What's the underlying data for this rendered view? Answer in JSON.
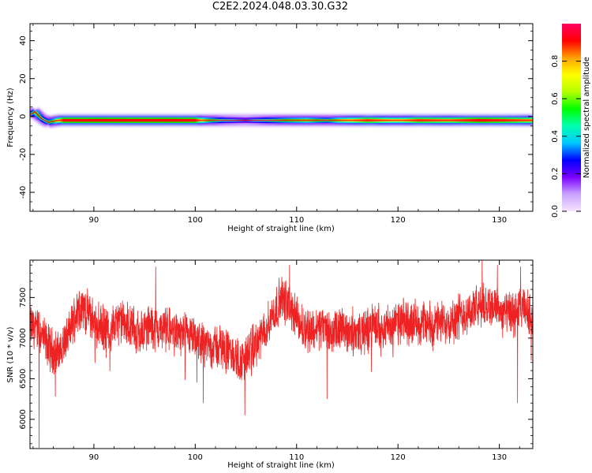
{
  "figure": {
    "title": "C2E2.2024.048.03.30.G32"
  },
  "chart_data": [
    {
      "type": "heatmap",
      "title": "C2E2.2024.048.03.30.G32",
      "xlabel": "Height of straight line (km)",
      "ylabel": "Frequency (Hz)",
      "xlim": [
        83.7,
        133.3
      ],
      "ylim": [
        -50,
        49
      ],
      "xticks": [
        90,
        100,
        110,
        120,
        130
      ],
      "yticks": [
        -40,
        -20,
        0,
        20,
        40
      ],
      "ytick_labels": [
        "-40",
        "-20",
        "0",
        "20",
        "40"
      ],
      "grid": false,
      "colorbar": {
        "label": "Normalized spectral amplitude",
        "range": [
          0,
          1
        ],
        "ticks": [
          0.0,
          0.2,
          0.4,
          0.6,
          0.8
        ],
        "tick_labels": [
          "0.0",
          "0.2",
          "0.4",
          "0.6",
          "0.8"
        ],
        "colormap": [
          "#f5e6ff",
          "#c9a3ff",
          "#7a00ff",
          "#0000ff",
          "#00c8ff",
          "#00ffb0",
          "#00ff00",
          "#b4ff00",
          "#ffff00",
          "#ffa000",
          "#ff0000",
          "#ff0066"
        ]
      },
      "ridge": [
        {
          "x": 83.7,
          "y": 1.0
        },
        {
          "x": 84.2,
          "y": 2.5
        },
        {
          "x": 84.8,
          "y": -1.0
        },
        {
          "x": 85.5,
          "y": -3.0
        },
        {
          "x": 86.5,
          "y": -2.0
        },
        {
          "x": 88,
          "y": -2.0
        },
        {
          "x": 100,
          "y": -2.0
        },
        {
          "x": 133,
          "y": -2.0
        }
      ],
      "band_amplitude": [
        {
          "x": 83.7,
          "v": 0.35
        },
        {
          "x": 84.3,
          "v": 0.6
        },
        {
          "x": 85.0,
          "v": 0.45
        },
        {
          "x": 86.0,
          "v": 0.55
        },
        {
          "x": 87.0,
          "v": 0.9
        },
        {
          "x": 95,
          "v": 0.92
        },
        {
          "x": 100,
          "v": 0.9
        },
        {
          "x": 101,
          "v": 0.6
        },
        {
          "x": 103,
          "v": 0.4
        },
        {
          "x": 105,
          "v": 0.3
        },
        {
          "x": 107,
          "v": 0.45
        },
        {
          "x": 109,
          "v": 0.55
        },
        {
          "x": 111,
          "v": 0.6
        },
        {
          "x": 113,
          "v": 0.5
        },
        {
          "x": 115,
          "v": 0.7
        },
        {
          "x": 117,
          "v": 0.85
        },
        {
          "x": 120,
          "v": 0.7
        },
        {
          "x": 122,
          "v": 0.85
        },
        {
          "x": 125,
          "v": 0.8
        },
        {
          "x": 128,
          "v": 0.9
        },
        {
          "x": 131,
          "v": 0.85
        },
        {
          "x": 133,
          "v": 0.8
        }
      ]
    },
    {
      "type": "line",
      "xlabel": "Height of straight line (km)",
      "ylabel": "SNR (10 * v/v)",
      "xlim": [
        83.7,
        133.3
      ],
      "ylim": [
        5640,
        7960
      ],
      "xticks": [
        90,
        100,
        110,
        120,
        130
      ],
      "yticks": [
        6000,
        6500,
        7000,
        7500
      ],
      "grid": false,
      "series": [
        {
          "color": "#ee2222",
          "x": [
            83.7,
            84.5,
            85.5,
            86.5,
            87.5,
            88.5,
            89.5,
            90.5,
            91.5,
            92.5,
            93.5,
            94.5,
            95.5,
            96.5,
            97.5,
            98.5,
            99.5,
            100.5,
            101.5,
            102.5,
            103.5,
            104.5,
            105.5,
            106.5,
            107.5,
            108.5,
            109.5,
            110.5,
            111.5,
            112.5,
            113.5,
            114.5,
            115.5,
            116.5,
            117.5,
            118.5,
            119.5,
            120.5,
            121.5,
            122.5,
            123.5,
            124.5,
            125.5,
            126.5,
            127.5,
            128.5,
            129.5,
            130.5,
            131.5,
            132.5,
            133.3
          ],
          "values": [
            7150,
            7100,
            6900,
            6800,
            7050,
            7400,
            7300,
            7150,
            7100,
            7200,
            7150,
            7050,
            7150,
            7100,
            7100,
            7050,
            7000,
            6950,
            6900,
            6900,
            6800,
            6700,
            6850,
            7000,
            7250,
            7500,
            7350,
            7150,
            7100,
            7150,
            7050,
            7100,
            7100,
            7050,
            7150,
            7150,
            7150,
            7200,
            7200,
            7200,
            7150,
            7200,
            7250,
            7300,
            7350,
            7400,
            7400,
            7300,
            7300,
            7350,
            7250
          ],
          "noise_amplitude": 320,
          "notable_dips": [
            {
              "x": 84.6,
              "y": 5650
            },
            {
              "x": 86.2,
              "y": 6280
            },
            {
              "x": 100.8,
              "y": 6200
            },
            {
              "x": 104.9,
              "y": 6050
            },
            {
              "x": 113.0,
              "y": 6250
            },
            {
              "x": 131.8,
              "y": 6200
            }
          ],
          "notable_peaks": [
            {
              "x": 96.1,
              "y": 7880
            },
            {
              "x": 109.3,
              "y": 7900
            },
            {
              "x": 128.3,
              "y": 7960
            },
            {
              "x": 129.8,
              "y": 7900
            },
            {
              "x": 132.1,
              "y": 7880
            }
          ]
        }
      ]
    }
  ]
}
